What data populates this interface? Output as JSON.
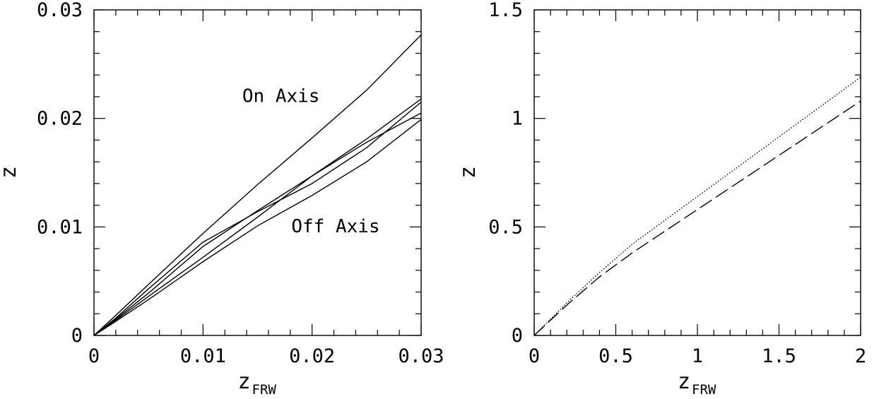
{
  "chart_data": [
    {
      "type": "line",
      "title": "",
      "xlabel": "z",
      "xlabel_sub": "FRW",
      "ylabel": "z",
      "xlim": [
        0,
        0.03
      ],
      "ylim": [
        0,
        0.03
      ],
      "xticks": [
        "0",
        "0.01",
        "0.02",
        "0.03"
      ],
      "xtick_values": [
        0,
        0.01,
        0.02,
        0.03
      ],
      "yticks": [
        "0",
        "0.01",
        "0.02",
        "0.03"
      ],
      "ytick_values": [
        0,
        0.01,
        0.02,
        0.03
      ],
      "x_minor_step": 0.002,
      "y_minor_step": 0.002,
      "grid": false,
      "annotations": [
        {
          "text": "On Axis",
          "x": 0.0136,
          "y": 0.0215
        },
        {
          "text": "Off Axis",
          "x": 0.0181,
          "y": 0.0095
        }
      ],
      "series": [
        {
          "style": "solid",
          "x": [
            0,
            0.002,
            0.005,
            0.01,
            0.015,
            0.02,
            0.025,
            0.03
          ],
          "y": [
            0,
            0.00185,
            0.0047,
            0.0094,
            0.0139,
            0.0182,
            0.0226,
            0.0277
          ]
        },
        {
          "style": "solid",
          "x": [
            0,
            0.002,
            0.005,
            0.01,
            0.015,
            0.02,
            0.025,
            0.03
          ],
          "y": [
            0,
            0.0014,
            0.0036,
            0.0072,
            0.0109,
            0.0147,
            0.0178,
            0.0205
          ]
        },
        {
          "style": "solid",
          "x": [
            0,
            0.002,
            0.005,
            0.01,
            0.015,
            0.02,
            0.025,
            0.03
          ],
          "y": [
            0,
            0.0015,
            0.0039,
            0.0082,
            0.0115,
            0.0147,
            0.0181,
            0.0218
          ]
        },
        {
          "style": "solid",
          "x": [
            0,
            0.002,
            0.005,
            0.01,
            0.015,
            0.02,
            0.025,
            0.03
          ],
          "y": [
            0,
            0.0016,
            0.0043,
            0.0086,
            0.0114,
            0.014,
            0.0173,
            0.0215
          ]
        },
        {
          "style": "solid",
          "x": [
            0,
            0.002,
            0.005,
            0.01,
            0.015,
            0.02,
            0.025,
            0.03
          ],
          "y": [
            0,
            0.0013,
            0.0033,
            0.0068,
            0.0101,
            0.0129,
            0.016,
            0.0199
          ]
        }
      ]
    },
    {
      "type": "line",
      "title": "",
      "xlabel": "z",
      "xlabel_sub": "FRW",
      "ylabel": "z",
      "xlim": [
        0,
        2
      ],
      "ylim": [
        0,
        1.5
      ],
      "xticks": [
        "0",
        "0.5",
        "1",
        "1.5",
        "2"
      ],
      "xtick_values": [
        0,
        0.5,
        1,
        1.5,
        2
      ],
      "yticks": [
        "0",
        "0.5",
        "1",
        "1.5"
      ],
      "ytick_values": [
        0,
        0.5,
        1,
        1.5
      ],
      "x_minor_step": 0.1,
      "y_minor_step": 0.1,
      "grid": false,
      "annotations": [],
      "series": [
        {
          "style": "dotted",
          "x": [
            0,
            0.2,
            0.4,
            0.6,
            0.8,
            1.0,
            1.2,
            1.4,
            1.6,
            1.8,
            2.0
          ],
          "y": [
            0,
            0.15,
            0.29,
            0.42,
            0.53,
            0.64,
            0.75,
            0.86,
            0.97,
            1.08,
            1.19
          ]
        },
        {
          "style": "dashed",
          "x": [
            0,
            0.2,
            0.4,
            0.6,
            0.8,
            1.0,
            1.2,
            1.4,
            1.6,
            1.8,
            2.0
          ],
          "y": [
            0,
            0.14,
            0.27,
            0.38,
            0.48,
            0.58,
            0.68,
            0.78,
            0.88,
            0.98,
            1.08
          ]
        }
      ]
    }
  ]
}
